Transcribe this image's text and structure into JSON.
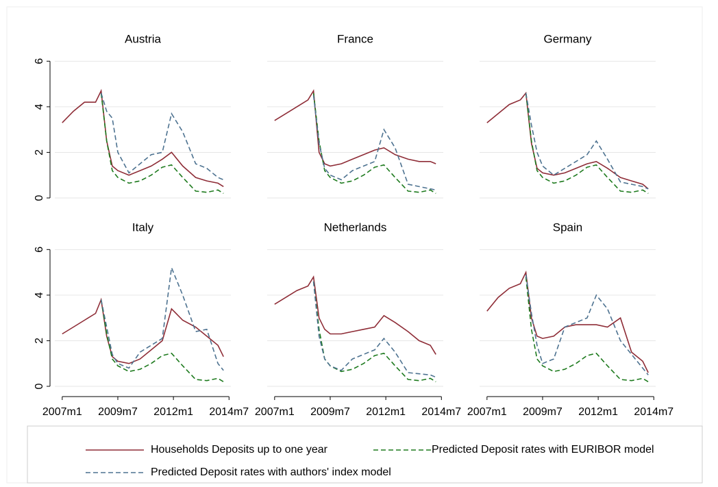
{
  "chart_data": {
    "type": "line",
    "x": [
      "2007m1",
      "2007m7",
      "2008m1",
      "2008m7",
      "2008m10",
      "2009m1",
      "2009m4",
      "2009m7",
      "2010m1",
      "2010m7",
      "2011m1",
      "2011m7",
      "2011m12",
      "2012m6",
      "2013m1",
      "2013m7",
      "2014m1",
      "2014m4"
    ],
    "xlim": [
      "2006m9",
      "2014m8"
    ],
    "xticks": [
      "2007m1",
      "2009m7",
      "2012m1",
      "2014m7"
    ],
    "ylim": [
      -0.3,
      6.4
    ],
    "yticks": [
      0,
      2,
      4,
      6
    ],
    "grid": true,
    "series": [
      {
        "name": "Households Deposits up to one year",
        "color": "#8e2c36",
        "dash": "solid"
      },
      {
        "name": "Predicted Deposit rates with EURIBOR model",
        "color": "#1d7a1d",
        "dash": "dashed"
      },
      {
        "name": "Predicted Deposit rates with authors' index model",
        "color": "#4d7290",
        "dash": "dashed"
      }
    ],
    "panels": [
      {
        "title": "Austria",
        "values": [
          [
            3.3,
            3.8,
            4.2,
            4.2,
            4.7,
            2.5,
            1.4,
            1.2,
            1.0,
            1.2,
            1.4,
            1.7,
            2.0,
            1.4,
            0.9,
            0.75,
            0.65,
            0.5
          ],
          [
            null,
            null,
            null,
            null,
            4.6,
            2.5,
            1.2,
            0.9,
            0.65,
            0.75,
            1.0,
            1.35,
            1.45,
            0.9,
            0.3,
            0.25,
            0.35,
            0.2
          ],
          [
            null,
            null,
            null,
            null,
            4.6,
            3.8,
            3.5,
            2.0,
            1.1,
            1.5,
            1.9,
            2.0,
            3.7,
            2.9,
            1.5,
            1.3,
            0.9,
            0.8
          ]
        ]
      },
      {
        "title": "France",
        "values": [
          [
            3.4,
            3.7,
            4.0,
            4.3,
            4.7,
            2.0,
            1.5,
            1.4,
            1.5,
            1.7,
            1.9,
            2.1,
            2.2,
            1.9,
            1.7,
            1.6,
            1.6,
            1.5
          ],
          [
            null,
            null,
            null,
            null,
            4.6,
            2.5,
            1.2,
            0.9,
            0.65,
            0.75,
            1.0,
            1.35,
            1.45,
            0.9,
            0.3,
            0.25,
            0.35,
            0.2
          ],
          [
            null,
            null,
            null,
            null,
            4.5,
            2.4,
            1.3,
            1.0,
            0.8,
            1.2,
            1.4,
            1.6,
            3.0,
            2.2,
            0.6,
            0.5,
            0.4,
            0.35
          ]
        ]
      },
      {
        "title": "Germany",
        "values": [
          [
            3.3,
            3.7,
            4.1,
            4.3,
            4.6,
            2.4,
            1.3,
            1.1,
            1.0,
            1.1,
            1.3,
            1.5,
            1.6,
            1.3,
            0.9,
            0.75,
            0.6,
            0.4
          ],
          [
            null,
            null,
            null,
            null,
            4.6,
            2.5,
            1.2,
            0.9,
            0.65,
            0.75,
            1.0,
            1.35,
            1.45,
            0.9,
            0.3,
            0.25,
            0.35,
            0.2
          ],
          [
            null,
            null,
            null,
            null,
            4.6,
            3.2,
            2.0,
            1.4,
            1.0,
            1.3,
            1.6,
            1.9,
            2.5,
            1.7,
            0.7,
            0.6,
            0.5,
            0.4
          ]
        ]
      },
      {
        "title": "Italy",
        "values": [
          [
            2.3,
            2.6,
            2.9,
            3.2,
            3.8,
            2.2,
            1.3,
            1.1,
            1.0,
            1.2,
            1.6,
            2.0,
            3.4,
            2.9,
            2.6,
            2.2,
            1.8,
            1.3
          ],
          [
            null,
            null,
            null,
            null,
            3.8,
            2.3,
            1.2,
            0.9,
            0.65,
            0.75,
            1.0,
            1.35,
            1.45,
            0.9,
            0.3,
            0.25,
            0.35,
            0.2
          ],
          [
            null,
            null,
            null,
            null,
            3.8,
            2.6,
            1.4,
            1.0,
            0.8,
            1.5,
            1.8,
            2.1,
            5.2,
            4.0,
            2.4,
            2.5,
            1.0,
            0.7
          ]
        ]
      },
      {
        "title": "Netherlands",
        "values": [
          [
            3.6,
            3.9,
            4.2,
            4.4,
            4.8,
            3.0,
            2.5,
            2.3,
            2.3,
            2.4,
            2.5,
            2.6,
            3.1,
            2.8,
            2.4,
            2.0,
            1.8,
            1.4
          ],
          [
            null,
            null,
            null,
            null,
            4.6,
            2.5,
            1.2,
            0.9,
            0.65,
            0.75,
            1.0,
            1.35,
            1.45,
            0.9,
            0.3,
            0.25,
            0.35,
            0.2
          ],
          [
            null,
            null,
            null,
            null,
            4.6,
            2.2,
            1.2,
            0.9,
            0.7,
            1.2,
            1.4,
            1.6,
            2.1,
            1.5,
            0.6,
            0.55,
            0.5,
            0.4
          ]
        ]
      },
      {
        "title": "Spain",
        "values": [
          [
            3.3,
            3.9,
            4.3,
            4.5,
            5.0,
            3.0,
            2.2,
            2.1,
            2.2,
            2.6,
            2.7,
            2.7,
            2.7,
            2.6,
            3.0,
            1.5,
            1.1,
            0.6
          ],
          [
            null,
            null,
            null,
            null,
            4.8,
            2.5,
            1.2,
            0.9,
            0.65,
            0.75,
            1.0,
            1.35,
            1.45,
            0.9,
            0.3,
            0.25,
            0.35,
            0.2
          ],
          [
            null,
            null,
            null,
            null,
            4.9,
            3.2,
            1.8,
            1.0,
            1.2,
            2.6,
            2.8,
            3.0,
            4.0,
            3.4,
            2.0,
            1.4,
            0.8,
            0.5
          ]
        ]
      }
    ]
  }
}
